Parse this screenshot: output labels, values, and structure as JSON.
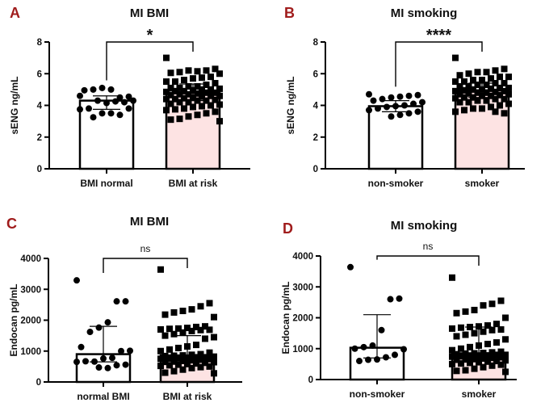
{
  "chart_data": [
    {
      "panel_label": "A",
      "type": "bar",
      "title": "MI BMI",
      "ylabel": "sENG ng/mL",
      "ylim": [
        0,
        8
      ],
      "yticks": [
        "0",
        "2",
        "4",
        "6",
        "8"
      ],
      "categories": [
        "BMI normal",
        "BMI at risk"
      ],
      "significance": "*",
      "bar_colors": [
        "#ffffff",
        "#fde3e3"
      ],
      "markers": [
        "circle",
        "square"
      ],
      "bars": [
        4.3,
        4.8
      ],
      "error": [
        [
          3.75,
          4.6
        ],
        [
          4.3,
          5.35
        ]
      ],
      "points": [
        [
          4.6,
          4.55,
          4.5,
          5.0,
          5.1,
          5.0,
          4.95,
          4.3,
          4.2,
          4.25,
          4.15,
          4.3,
          3.8,
          3.75,
          3.8,
          3.4,
          3.5,
          3.5,
          3.25
        ],
        [
          7.0,
          6.3,
          6.2,
          6.15,
          6.2,
          6.1,
          6.05,
          6.0,
          5.8,
          5.75,
          5.7,
          5.6,
          5.5,
          5.5,
          5.4,
          5.3,
          5.2,
          5.2,
          5.1,
          5.1,
          5.05,
          5.0,
          5.0,
          4.95,
          4.9,
          4.9,
          4.85,
          4.8,
          4.8,
          4.75,
          4.7,
          4.7,
          4.65,
          4.6,
          4.6,
          4.55,
          4.5,
          4.45,
          4.4,
          4.4,
          4.35,
          4.3,
          4.3,
          4.2,
          4.2,
          4.1,
          4.05,
          4.0,
          3.95,
          3.9,
          3.8,
          3.75,
          3.7,
          3.6,
          3.5,
          3.4,
          3.3,
          3.15,
          3.1,
          3.0
        ]
      ]
    },
    {
      "panel_label": "B",
      "type": "bar",
      "title": "MI smoking",
      "ylabel": "sENG ng/mL",
      "ylim": [
        0,
        8
      ],
      "yticks": [
        "0",
        "2",
        "4",
        "6",
        "8"
      ],
      "categories": [
        "non-smoker",
        "smoker"
      ],
      "significance": "****",
      "bar_colors": [
        "#ffffff",
        "#fde3e3"
      ],
      "markers": [
        "circle",
        "square"
      ],
      "bars": [
        3.95,
        4.95
      ],
      "error": [
        [
          3.6,
          4.3
        ],
        [
          4.5,
          5.4
        ]
      ],
      "points": [
        [
          4.7,
          4.65,
          4.6,
          4.55,
          4.5,
          4.4,
          4.3,
          4.2,
          4.1,
          4.0,
          3.95,
          3.9,
          3.8,
          3.7,
          3.6,
          3.5,
          3.4,
          3.3
        ],
        [
          7.0,
          6.3,
          6.2,
          6.1,
          6.1,
          6.0,
          5.9,
          5.8,
          5.8,
          5.7,
          5.6,
          5.6,
          5.5,
          5.5,
          5.4,
          5.4,
          5.3,
          5.3,
          5.2,
          5.2,
          5.1,
          5.1,
          5.05,
          5.0,
          5.0,
          4.95,
          4.9,
          4.9,
          4.85,
          4.8,
          4.8,
          4.75,
          4.7,
          4.7,
          4.65,
          4.6,
          4.6,
          4.5,
          4.5,
          4.45,
          4.4,
          4.4,
          4.3,
          4.3,
          4.2,
          4.2,
          4.1,
          4.0,
          3.9,
          3.8,
          3.8,
          3.7,
          3.6,
          3.5,
          3.6
        ]
      ]
    },
    {
      "panel_label": "C",
      "type": "bar",
      "title": "MI BMI",
      "ylabel": "Endocan pg/mL",
      "ylim": [
        0,
        4000
      ],
      "yticks": [
        "0",
        "1000",
        "2000",
        "3000",
        "4000"
      ],
      "categories": [
        "normal BMI",
        "BMI at risk"
      ],
      "significance": "ns",
      "bar_colors": [
        "#ffffff",
        "#fde3e3"
      ],
      "markers": [
        "circle",
        "square"
      ],
      "bars": [
        900,
        860
      ],
      "error": [
        [
          650,
          1800
        ],
        [
          700,
          1500
        ]
      ],
      "points": [
        [
          3290,
          2610,
          2610,
          1930,
          1760,
          1620,
          1130,
          1010,
          1000,
          780,
          760,
          660,
          670,
          650,
          560,
          540,
          450,
          470
        ],
        [
          3640,
          2550,
          2450,
          2350,
          2300,
          2250,
          2180,
          2100,
          1800,
          1780,
          1750,
          1730,
          1720,
          1700,
          1690,
          1680,
          1650,
          1600,
          1550,
          1500,
          1450,
          1400,
          1200,
          1150,
          1100,
          1050,
          1000,
          950,
          900,
          880,
          860,
          850,
          840,
          820,
          800,
          800,
          780,
          770,
          760,
          750,
          740,
          720,
          700,
          680,
          660,
          650,
          640,
          620,
          600,
          580,
          560,
          540,
          520,
          500,
          480,
          450,
          400,
          350,
          300,
          280
        ]
      ]
    },
    {
      "panel_label": "D",
      "type": "bar",
      "title": "MI smoking",
      "ylabel": "Endocan pg/mL",
      "ylim": [
        0,
        4000
      ],
      "yticks": [
        "0",
        "1000",
        "2000",
        "3000",
        "4000"
      ],
      "categories": [
        "non-smoker",
        "smoker"
      ],
      "significance": "ns",
      "bar_colors": [
        "#ffffff",
        "#fde3e3"
      ],
      "markers": [
        "circle",
        "square"
      ],
      "bars": [
        1030,
        850
      ],
      "error": [
        [
          700,
          2100
        ],
        [
          650,
          1700
        ]
      ],
      "points": [
        [
          3640,
          2620,
          2600,
          1600,
          1100,
          1050,
          1000,
          980,
          800,
          720,
          650,
          640,
          600
        ],
        [
          3300,
          2550,
          2450,
          2400,
          2250,
          2200,
          2150,
          2000,
          1800,
          1750,
          1720,
          1700,
          1680,
          1650,
          1620,
          1600,
          1550,
          1500,
          1450,
          1400,
          1300,
          1200,
          1150,
          1100,
          1050,
          1000,
          950,
          900,
          880,
          860,
          850,
          840,
          820,
          800,
          800,
          780,
          770,
          760,
          750,
          740,
          720,
          700,
          680,
          660,
          650,
          640,
          620,
          600,
          580,
          560,
          540,
          520,
          500,
          480,
          450,
          400,
          350,
          300,
          280,
          250
        ]
      ]
    }
  ],
  "label_color": "#a01c1c"
}
